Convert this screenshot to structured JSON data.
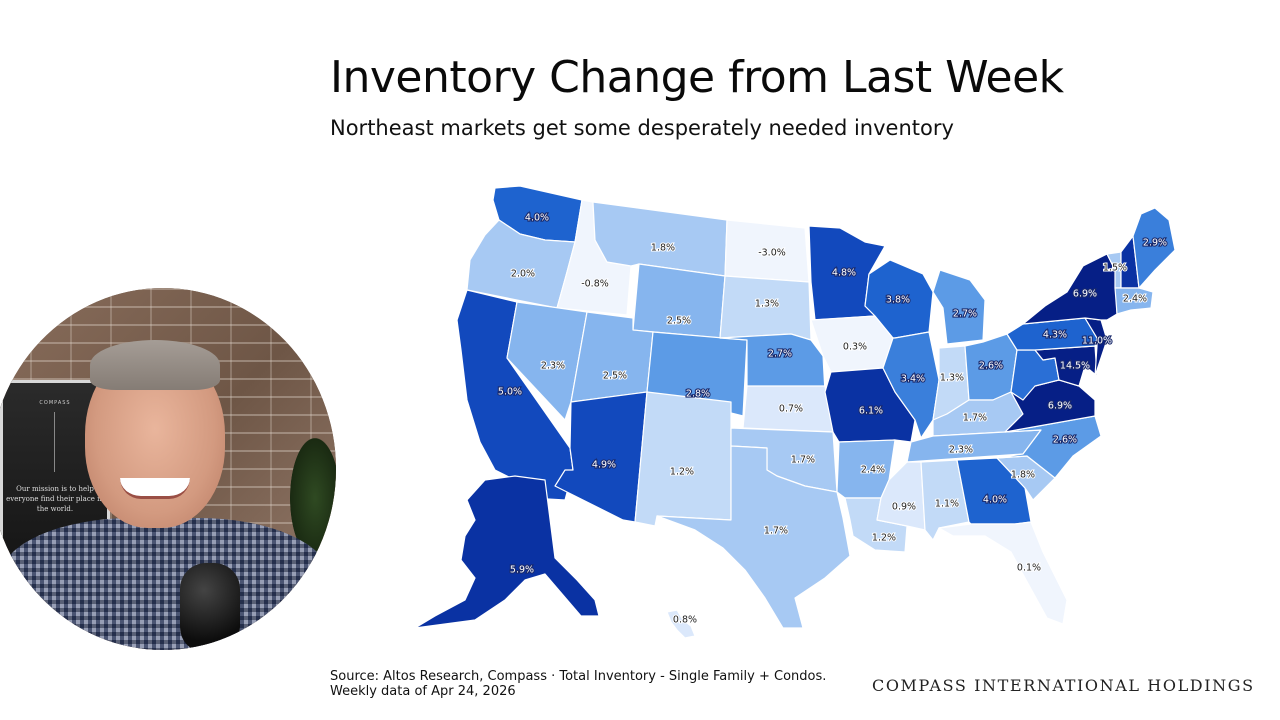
{
  "header": {
    "title": "Inventory Change from Last Week",
    "subtitle": "Northeast markets get some desperately needed inventory"
  },
  "footer": {
    "source_line1": "Source: Altos Research, Compass · Total Inventory - Single Family + Condos.",
    "source_line2": "Weekly data of Apr 24, 2026",
    "brand": "COMPASS INTERNATIONAL HOLDINGS"
  },
  "webcam": {
    "poster_brand": "COMPASS",
    "poster_text": "Our mission is to help everyone find their place in the world."
  },
  "colors": {
    "scale": [
      "#f0f5fd",
      "#dbe8fb",
      "#c2daf7",
      "#a7c9f3",
      "#86b5ee",
      "#5c9be6",
      "#3a7fdb",
      "#1e63cf",
      "#1249bd",
      "#0a32a3",
      "#061f86"
    ]
  },
  "chart_data": {
    "type": "choropleth",
    "title": "Inventory Change from Last Week",
    "subtitle": "Northeast markets get some desperately needed inventory",
    "unit": "% change week-over-week",
    "legend": "none",
    "states": [
      {
        "state": "WA",
        "value": 4.0,
        "label": "4.0%"
      },
      {
        "state": "OR",
        "value": 2.0,
        "label": "2.0%"
      },
      {
        "state": "CA",
        "value": 5.0,
        "label": "5.0%"
      },
      {
        "state": "ID",
        "value": -0.8,
        "label": "-0.8%"
      },
      {
        "state": "NV",
        "value": 2.3,
        "label": "2.3%"
      },
      {
        "state": "MT",
        "value": 1.8,
        "label": "1.8%"
      },
      {
        "state": "WY",
        "value": 2.5,
        "label": "2.5%"
      },
      {
        "state": "UT",
        "value": 2.5,
        "label": "2.5%"
      },
      {
        "state": "AZ",
        "value": 4.9,
        "label": "4.9%"
      },
      {
        "state": "CO",
        "value": 2.8,
        "label": "2.8%"
      },
      {
        "state": "NM",
        "value": 1.2,
        "label": "1.2%"
      },
      {
        "state": "ND",
        "value": -3.0,
        "label": "-3.0%"
      },
      {
        "state": "SD",
        "value": 1.3,
        "label": "1.3%"
      },
      {
        "state": "NE",
        "value": 2.7,
        "label": "2.7%"
      },
      {
        "state": "KS",
        "value": 0.7,
        "label": "0.7%"
      },
      {
        "state": "OK",
        "value": 1.7,
        "label": "1.7%"
      },
      {
        "state": "TX",
        "value": 1.7,
        "label": "1.7%"
      },
      {
        "state": "MN",
        "value": 4.8,
        "label": "4.8%"
      },
      {
        "state": "IA",
        "value": 0.3,
        "label": "0.3%"
      },
      {
        "state": "MO",
        "value": 6.1,
        "label": "6.1%"
      },
      {
        "state": "AR",
        "value": 2.4,
        "label": "2.4%"
      },
      {
        "state": "LA",
        "value": 1.2,
        "label": "1.2%"
      },
      {
        "state": "WI",
        "value": 3.8,
        "label": "3.8%"
      },
      {
        "state": "IL",
        "value": 3.4,
        "label": "3.4%"
      },
      {
        "state": "MI",
        "value": 2.7,
        "label": "2.7%"
      },
      {
        "state": "IN",
        "value": 1.3,
        "label": "1.3%"
      },
      {
        "state": "OH",
        "value": 2.6,
        "label": "2.6%"
      },
      {
        "state": "KY",
        "value": 1.7,
        "label": "1.7%"
      },
      {
        "state": "TN",
        "value": 2.3,
        "label": "2.3%"
      },
      {
        "state": "MS",
        "value": 0.9,
        "label": "0.9%"
      },
      {
        "state": "AL",
        "value": 1.1,
        "label": "1.1%"
      },
      {
        "state": "GA",
        "value": 4.0,
        "label": "4.0%"
      },
      {
        "state": "FL",
        "value": 0.1,
        "label": "0.1%"
      },
      {
        "state": "SC",
        "value": 1.8,
        "label": "1.8%"
      },
      {
        "state": "NC",
        "value": 2.6,
        "label": "2.6%"
      },
      {
        "state": "VA",
        "value": 6.9,
        "label": "6.9%"
      },
      {
        "state": "WV",
        "value": null,
        "label": ""
      },
      {
        "state": "MD",
        "value": 14.5,
        "label": "14.5%"
      },
      {
        "state": "PA",
        "value": 4.3,
        "label": "4.3%"
      },
      {
        "state": "NJ",
        "value": 11.0,
        "label": "11.0%"
      },
      {
        "state": "NY",
        "value": 6.9,
        "label": "6.9%"
      },
      {
        "state": "VT",
        "value": 1.5,
        "label": "1.5%"
      },
      {
        "state": "NH",
        "value": null,
        "label": ""
      },
      {
        "state": "MA",
        "value": 2.4,
        "label": "2.4%"
      },
      {
        "state": "ME",
        "value": 2.9,
        "label": "2.9%"
      },
      {
        "state": "AK",
        "value": 5.9,
        "label": "5.9%"
      },
      {
        "state": "HI",
        "value": 0.8,
        "label": "0.8%"
      }
    ]
  }
}
